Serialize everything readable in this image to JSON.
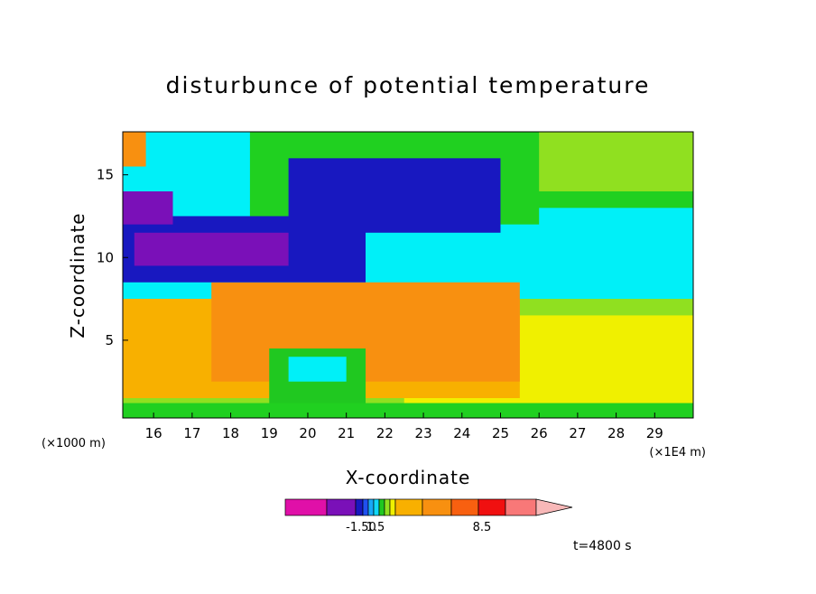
{
  "chart_data": {
    "type": "heatmap",
    "title": "disturbunce of potential temperature",
    "xlabel": "X-coordinate",
    "ylabel": "Z-coordinate",
    "x_unit_left": "(×1000 m)",
    "x_unit_right": "(×1E4 m)",
    "x_ticks": [
      "16",
      "17",
      "18",
      "19",
      "20",
      "21",
      "22",
      "23",
      "24",
      "25",
      "26",
      "27",
      "28",
      "29"
    ],
    "y_ticks": [
      "5",
      "10",
      "15"
    ],
    "xlim": [
      15.2,
      30.0
    ],
    "ylim": [
      0.3,
      17.6
    ],
    "time_label": "t=4800 s",
    "colorbar": {
      "colors": [
        "#e010a8",
        "#7a10b8",
        "#1818c0",
        "#2050f0",
        "#18a8f8",
        "#10d8f8",
        "#20c820",
        "#90e020",
        "#f0f000",
        "#f8b000",
        "#f89010",
        "#f86010",
        "#f01010",
        "#f87878",
        "#f8b8b8"
      ],
      "labels": [
        "-1.50",
        "1.5",
        "8.5"
      ]
    },
    "field_cells": [
      {
        "x0": 15.2,
        "y0": 0.3,
        "x1": 30.0,
        "y1": 17.6,
        "color": "#00f0f8"
      },
      {
        "x0": 18.5,
        "y0": 12.0,
        "x1": 30.0,
        "y1": 17.6,
        "color": "#20d020"
      },
      {
        "x0": 26.0,
        "y0": 14.0,
        "x1": 30.0,
        "y1": 17.6,
        "color": "#90e020"
      },
      {
        "x0": 15.2,
        "y0": 1.0,
        "x1": 30.0,
        "y1": 7.5,
        "color": "#90e020"
      },
      {
        "x0": 22.5,
        "y0": 1.0,
        "x1": 30.0,
        "y1": 6.5,
        "color": "#f0f000"
      },
      {
        "x0": 15.2,
        "y0": 0.3,
        "x1": 30.0,
        "y1": 1.2,
        "color": "#20d020"
      },
      {
        "x0": 15.2,
        "y0": 1.5,
        "x1": 25.5,
        "y1": 7.5,
        "color": "#f8b000"
      },
      {
        "x0": 17.5,
        "y0": 2.5,
        "x1": 25.5,
        "y1": 8.5,
        "color": "#f89010"
      },
      {
        "x0": 19.0,
        "y0": 1.2,
        "x1": 21.5,
        "y1": 4.5,
        "color": "#20c820"
      },
      {
        "x0": 19.5,
        "y0": 2.5,
        "x1": 21.0,
        "y1": 4.0,
        "color": "#00f0f8"
      },
      {
        "x0": 15.2,
        "y0": 8.5,
        "x1": 21.5,
        "y1": 12.5,
        "color": "#1818c0"
      },
      {
        "x0": 15.5,
        "y0": 9.5,
        "x1": 19.5,
        "y1": 11.5,
        "color": "#7a10b8"
      },
      {
        "x0": 15.2,
        "y0": 12.0,
        "x1": 16.5,
        "y1": 14.0,
        "color": "#7a10b8"
      },
      {
        "x0": 19.5,
        "y0": 11.5,
        "x1": 25.0,
        "y1": 16.0,
        "color": "#1818c0"
      },
      {
        "x0": 15.2,
        "y0": 15.5,
        "x1": 15.8,
        "y1": 17.6,
        "color": "#f89010"
      },
      {
        "x0": 26.0,
        "y0": 9.0,
        "x1": 30.0,
        "y1": 13.0,
        "color": "#00f0f8"
      }
    ]
  }
}
